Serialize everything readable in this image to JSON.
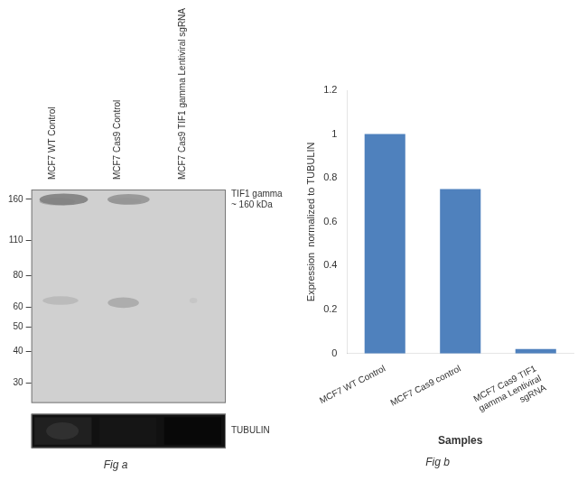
{
  "chart_data": [
    {
      "type": "blot",
      "title": "Fig a",
      "categories": [
        "MCF7 WT Control",
        "MCF7 Cas9 Control",
        "MCF7 Cas9 TIF1 gamma Lentiviral sgRNA"
      ],
      "log": "y",
      "ylim": [
        25,
        175
      ],
      "yticks": [
        160,
        110,
        80,
        60,
        50,
        40,
        30
      ],
      "annotations": [
        "TIF1 gamma\n~ 160 kDa",
        "TUBULIN"
      ],
      "grid": false
    },
    {
      "type": "bar",
      "title": "Fig b",
      "categories": [
        "MCF7 WT Control",
        "MCF7 Cas9 control",
        "MCF7 Cas9 TIF1\ngamma Lentiviral\nsgRNA"
      ],
      "values": [
        1.0,
        0.75,
        0.02
      ],
      "color": "#4f81bd",
      "xlabel": "Samples",
      "ylabel": "Expression  normalized to TUBULIN",
      "ylim": [
        0,
        1.2
      ],
      "yticks": [
        0,
        0.2,
        0.4,
        0.6,
        0.8,
        1,
        1.2
      ],
      "grid": false
    }
  ]
}
